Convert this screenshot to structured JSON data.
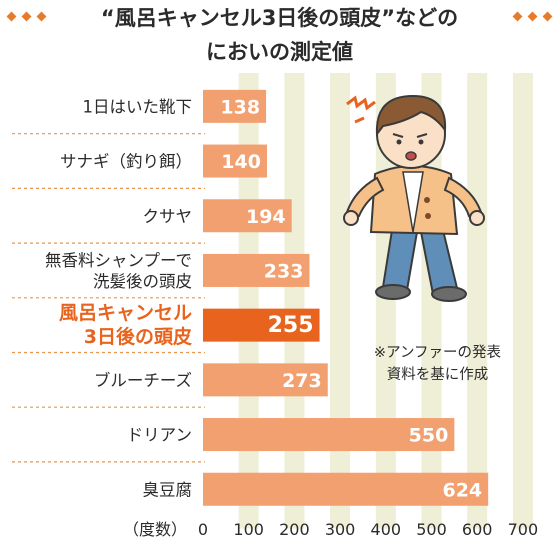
{
  "title": {
    "line1": "“風呂キャンセル3日後の頭皮”などの",
    "line2": "においの測定値"
  },
  "source_note": {
    "line1": "※アンファーの発表",
    "line2": "資料を基に作成"
  },
  "colors": {
    "bar": "#f2a070",
    "bar_highlight": "#e8641e",
    "stripe": "#eeefd6",
    "title_accent": "#e87a2a",
    "label_highlight": "#e8641e"
  },
  "chart_data": {
    "type": "bar",
    "orientation": "horizontal",
    "categories": [
      [
        "1日はいた靴下"
      ],
      [
        "サナギ（釣り餌）"
      ],
      [
        "クサヤ"
      ],
      [
        "無香料シャンプーで",
        "洗髪後の頭皮"
      ],
      [
        "風呂キャンセル",
        "3日後の頭皮"
      ],
      [
        "ブルーチーズ"
      ],
      [
        "ドリアン"
      ],
      [
        "臭豆腐"
      ]
    ],
    "values": [
      138,
      140,
      194,
      233,
      255,
      273,
      550,
      624
    ],
    "highlight_index": 4,
    "xlim": [
      0,
      700
    ],
    "xticks": [
      "0",
      "100",
      "200",
      "300",
      "400",
      "500",
      "600",
      "700"
    ],
    "xunit": "（度数）"
  }
}
